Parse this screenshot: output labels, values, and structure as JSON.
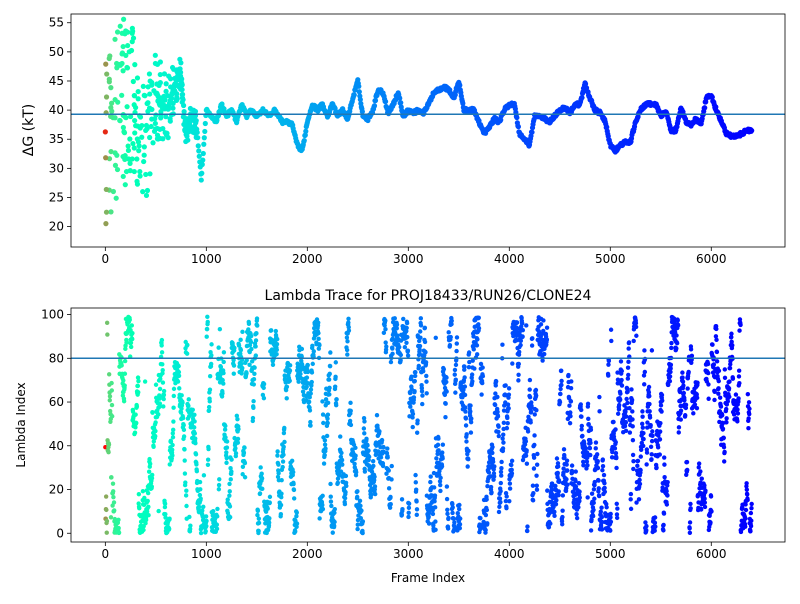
{
  "chart_data": [
    {
      "type": "scatter",
      "title": "",
      "xlabel": "",
      "ylabel": "ΔG (kT)",
      "xlim": [
        -340,
        6730
      ],
      "ylim": [
        16.5,
        56.5
      ],
      "xticks": [
        0,
        1000,
        2000,
        3000,
        4000,
        5000,
        6000
      ],
      "xtick_labels": [
        "0",
        "1000",
        "2000",
        "3000",
        "4000",
        "5000",
        "6000"
      ],
      "yticks": [
        20,
        25,
        30,
        35,
        40,
        45,
        50,
        55
      ],
      "ytick_labels": [
        "20",
        "25",
        "30",
        "35",
        "40",
        "45",
        "50",
        "55"
      ],
      "hline": 39.3,
      "hline_color": "#1f77b4",
      "colormap": "rainbow",
      "grid": false,
      "trace_keypoints": {
        "x": [
          0,
          60,
          100,
          150,
          200,
          260,
          300,
          350,
          400,
          450,
          500,
          560,
          620,
          680,
          740,
          800,
          850,
          900,
          950,
          1000,
          1050,
          1100,
          1150,
          1200,
          1250,
          1300,
          1350,
          1400,
          1450,
          1500,
          1560,
          1620,
          1680,
          1750,
          1800,
          1850,
          1900,
          1950,
          2000,
          2050,
          2100,
          2150,
          2200,
          2250,
          2300,
          2350,
          2400,
          2450,
          2500,
          2550,
          2600,
          2650,
          2700,
          2750,
          2800,
          2850,
          2900,
          2950,
          3000,
          3050,
          3100,
          3150,
          3200,
          3250,
          3300,
          3350,
          3400,
          3450,
          3500,
          3550,
          3600,
          3650,
          3700,
          3750,
          3800,
          3850,
          3900,
          3950,
          4000,
          4050,
          4100,
          4150,
          4200,
          4250,
          4300,
          4350,
          4400,
          4450,
          4500,
          4550,
          4600,
          4650,
          4700,
          4750,
          4800,
          4850,
          4900,
          4950,
          5000,
          5050,
          5100,
          5150,
          5200,
          5250,
          5300,
          5350,
          5400,
          5450,
          5500,
          5550,
          5600,
          5650,
          5700,
          5750,
          5800,
          5850,
          5900,
          5950,
          6000,
          6050,
          6100,
          6150,
          6200,
          6250,
          6300,
          6350,
          6400
        ],
        "y": [
          38,
          36,
          40,
          42,
          41,
          43,
          39,
          37,
          34,
          39,
          43,
          41,
          40,
          44,
          47,
          36,
          39,
          38,
          28,
          40,
          39,
          38,
          41,
          39,
          40,
          38,
          41,
          39,
          40,
          39,
          40,
          39,
          40,
          38,
          38,
          37.5,
          34,
          33,
          38,
          41,
          40,
          41,
          39,
          41,
          39,
          40,
          38.5,
          42,
          45,
          39,
          38.5,
          40,
          43.5,
          43,
          39.5,
          41,
          43,
          39,
          40,
          39.5,
          40,
          39.5,
          41,
          43,
          43.5,
          44,
          43.5,
          42,
          45,
          40,
          40,
          40,
          38,
          36,
          37,
          38.5,
          38,
          40,
          41,
          41,
          36,
          35,
          34,
          39,
          39,
          38.5,
          38,
          39,
          40,
          40.5,
          39.5,
          41,
          41,
          44.5,
          42,
          40,
          39.5,
          38,
          34,
          33,
          34,
          34.5,
          34.5,
          38,
          40,
          41,
          41,
          41,
          39,
          40,
          36.5,
          36.5,
          40.5,
          38,
          37.5,
          38.5,
          37.5,
          42,
          42.5,
          40,
          38,
          36,
          35.5,
          35.5,
          36,
          36.5,
          36.5
        ]
      },
      "early_scatter_range": {
        "x": [
          0,
          900
        ],
        "y": [
          18,
          56
        ]
      }
    },
    {
      "type": "scatter",
      "title": "Lambda Trace for PROJ18433/RUN26/CLONE24",
      "xlabel": "Frame Index",
      "ylabel": "Lambda Index",
      "xlim": [
        -340,
        6730
      ],
      "ylim": [
        -4,
        103
      ],
      "xticks": [
        0,
        1000,
        2000,
        3000,
        4000,
        5000,
        6000
      ],
      "xtick_labels": [
        "0",
        "1000",
        "2000",
        "3000",
        "4000",
        "5000",
        "6000"
      ],
      "yticks": [
        0,
        20,
        40,
        60,
        80,
        100
      ],
      "ytick_labels": [
        "0",
        "20",
        "40",
        "60",
        "80",
        "100"
      ],
      "hline": 80,
      "hline_color": "#1f77b4",
      "colormap": "rainbow",
      "grid": false,
      "frames": [
        0,
        6400
      ],
      "lambda_range": [
        0,
        99
      ]
    }
  ]
}
